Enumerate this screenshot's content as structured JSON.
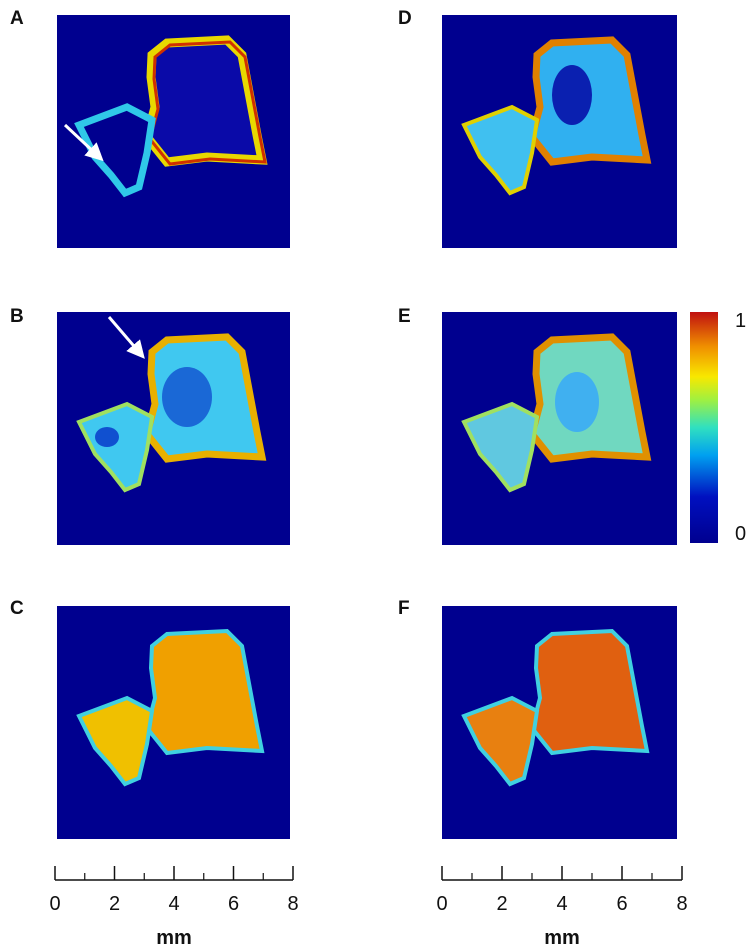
{
  "panels": [
    {
      "label": "A"
    },
    {
      "label": "B"
    },
    {
      "label": "C"
    },
    {
      "label": "D"
    },
    {
      "label": "E"
    },
    {
      "label": "F"
    }
  ],
  "colorbar": {
    "top_label": "1",
    "bottom_label": "0"
  },
  "scale_bars": [
    {
      "xlim": [
        0,
        8
      ],
      "ticks": [
        0,
        2,
        4,
        6,
        8
      ],
      "unit": "mm"
    },
    {
      "xlim": [
        0,
        8
      ],
      "ticks": [
        0,
        2,
        4,
        6,
        8
      ],
      "unit": "mm"
    }
  ]
}
